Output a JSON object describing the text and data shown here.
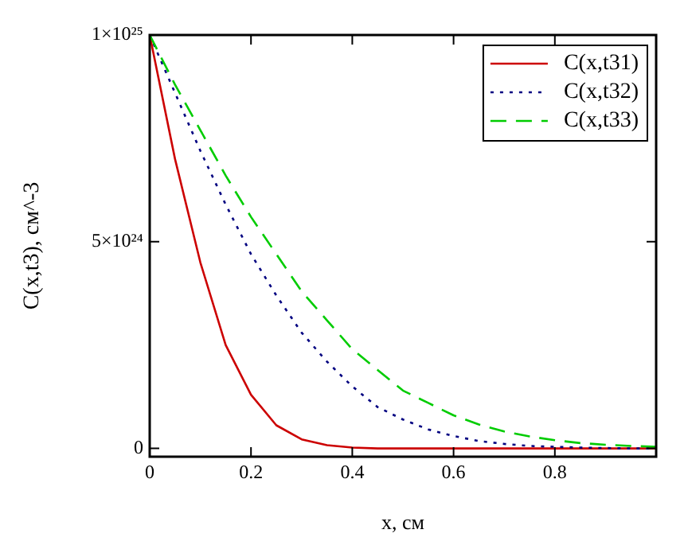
{
  "chart_data": {
    "type": "line",
    "xlabel": "x, см",
    "ylabel": "C(x,t3), см^-3",
    "x": [
      0,
      0.05,
      0.1,
      0.15,
      0.2,
      0.25,
      0.3,
      0.35,
      0.4,
      0.45,
      0.5,
      0.55,
      0.6,
      0.65,
      0.7,
      0.75,
      0.8,
      0.85,
      0.9,
      0.95,
      1.0
    ],
    "series": [
      {
        "name": "C(x,t31)",
        "color": "#cc0000",
        "line_style": "solid",
        "values": [
          1e+25,
          7e+24,
          4.5e+24,
          2.5e+24,
          1.3e+24,
          5.6e+23,
          2.2e+23,
          8e+22,
          2e+22,
          0,
          0,
          0,
          0,
          0,
          0,
          0,
          0,
          0,
          0,
          0,
          0
        ]
      },
      {
        "name": "C(x,t32)",
        "color": "#000080",
        "line_style": "dotted",
        "values": [
          1e+25,
          8.6e+24,
          7.2e+24,
          5.9e+24,
          4.7e+24,
          3.7e+24,
          2.8e+24,
          2.1e+24,
          1.5e+24,
          1e+24,
          7e+23,
          4.6e+23,
          3e+23,
          1.8e+23,
          1.1e+23,
          6e+22,
          4e+22,
          2e+22,
          1e+22,
          0,
          0
        ]
      },
      {
        "name": "C(x,t33)",
        "color": "#00cc00",
        "line_style": "dashed",
        "values": [
          1e+25,
          8.8e+24,
          7.7e+24,
          6.6e+24,
          5.6e+24,
          4.7e+24,
          3.8e+24,
          3.1e+24,
          2.4e+24,
          1.9e+24,
          1.4e+24,
          1.1e+24,
          8e+23,
          5.8e+23,
          4.1e+23,
          2.9e+23,
          2e+23,
          1.3e+23,
          9e+22,
          6e+22,
          4e+22
        ]
      }
    ],
    "xlim": [
      0,
      1
    ],
    "xticks": [
      0,
      0.2,
      0.4,
      0.6,
      0.8
    ],
    "ylim": [
      -2e+23,
      1e+25
    ],
    "yticks": [
      0,
      {
        "value": 5e+24,
        "label": "5×10²⁴"
      },
      {
        "value": 1e+25,
        "label": "1×10²⁵"
      }
    ],
    "legend": "top right",
    "marker": "none",
    "grid": false
  }
}
